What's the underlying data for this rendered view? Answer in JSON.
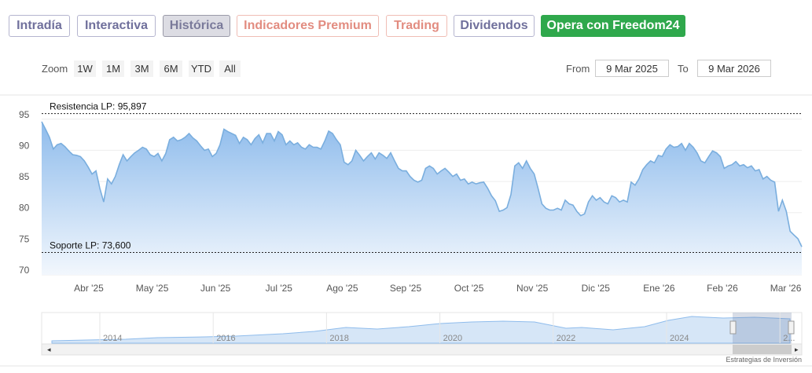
{
  "tabs": [
    "Intradía",
    "Interactiva",
    "Histórica",
    "Indicadores Premium",
    "Trading",
    "Dividendos",
    "Opera con Freedom24"
  ],
  "zoom": {
    "label": "Zoom",
    "buttons": [
      "1W",
      "1M",
      "3M",
      "6M",
      "YTD",
      "All"
    ]
  },
  "range": {
    "from_label": "From",
    "from": "9 Mar 2025",
    "to_label": "To",
    "to": "9 Mar 2026"
  },
  "navigator": {
    "years": [
      "2014",
      "2016",
      "2018",
      "2020",
      "2022",
      "2024",
      "2..."
    ]
  },
  "footer": "Estrategias de Inversión",
  "chart_data": {
    "type": "area",
    "color": "#7aaede",
    "values": [
      94.6,
      93.4,
      92.1,
      90.2,
      90.9,
      91.1,
      90.6,
      89.9,
      89.3,
      89.2,
      89.0,
      88.3,
      87.3,
      86.2,
      86.7,
      83.9,
      81.7,
      85.4,
      84.6,
      85.8,
      87.7,
      89.3,
      88.3,
      89.0,
      89.6,
      90.0,
      90.5,
      90.2,
      89.3,
      89.0,
      89.5,
      88.3,
      89.5,
      91.7,
      92.1,
      91.5,
      91.7,
      92.1,
      92.7,
      92.0,
      91.5,
      90.7,
      90.0,
      90.2,
      89.0,
      89.5,
      90.9,
      93.4,
      93.0,
      92.7,
      92.4,
      91.1,
      92.1,
      91.7,
      90.9,
      91.9,
      92.5,
      91.2,
      92.7,
      92.7,
      91.5,
      93.0,
      92.5,
      90.9,
      91.5,
      90.9,
      91.2,
      90.5,
      90.2,
      90.9,
      90.5,
      90.5,
      90.2,
      91.5,
      93.1,
      92.7,
      91.7,
      90.9,
      88.1,
      87.7,
      88.3,
      90.0,
      89.2,
      88.3,
      89.0,
      89.6,
      88.6,
      89.6,
      89.2,
      88.7,
      89.6,
      88.3,
      87.1,
      86.7,
      86.7,
      85.8,
      85.2,
      84.9,
      85.2,
      87.1,
      87.5,
      87.1,
      86.2,
      86.7,
      87.1,
      86.5,
      85.8,
      86.2,
      85.2,
      85.4,
      84.6,
      84.9,
      84.6,
      84.8,
      84.9,
      83.9,
      82.7,
      81.9,
      80.2,
      80.4,
      80.8,
      82.9,
      87.5,
      88.0,
      87.1,
      88.3,
      87.1,
      86.2,
      83.9,
      81.4,
      80.7,
      80.4,
      80.4,
      80.7,
      80.4,
      82.0,
      81.4,
      81.2,
      80.2,
      79.5,
      79.8,
      81.7,
      82.7,
      82.0,
      82.4,
      81.7,
      81.4,
      82.7,
      82.4,
      81.7,
      82.0,
      81.7,
      84.9,
      84.4,
      85.4,
      86.9,
      87.7,
      88.3,
      88.0,
      89.2,
      89.0,
      90.2,
      90.9,
      90.5,
      90.6,
      91.1,
      90.0,
      91.1,
      90.5,
      89.6,
      88.3,
      88.0,
      89.0,
      89.9,
      89.6,
      89.0,
      87.1,
      87.5,
      87.7,
      88.2,
      87.5,
      87.7,
      87.2,
      87.5,
      86.7,
      86.9,
      85.4,
      85.8,
      85.2,
      84.9,
      80.2,
      82.0,
      80.2,
      77.0,
      76.4,
      75.8,
      74.5
    ],
    "x_labels": [
      "Abr '25",
      "May '25",
      "Jun '25",
      "Jul '25",
      "Ago '25",
      "Sep '25",
      "Oct '25",
      "Nov '25",
      "Dic '25",
      "Ene '26",
      "Feb '26",
      "Mar '26"
    ],
    "ylim": [
      70,
      98
    ],
    "yticks": [
      70,
      75,
      80,
      85,
      90,
      95
    ],
    "grid": true,
    "plot_lines": [
      {
        "value": 95.897,
        "label": "Resistencia LP: 95,897"
      },
      {
        "value": 73.6,
        "label": "Soporte LP: 73,600"
      }
    ]
  }
}
